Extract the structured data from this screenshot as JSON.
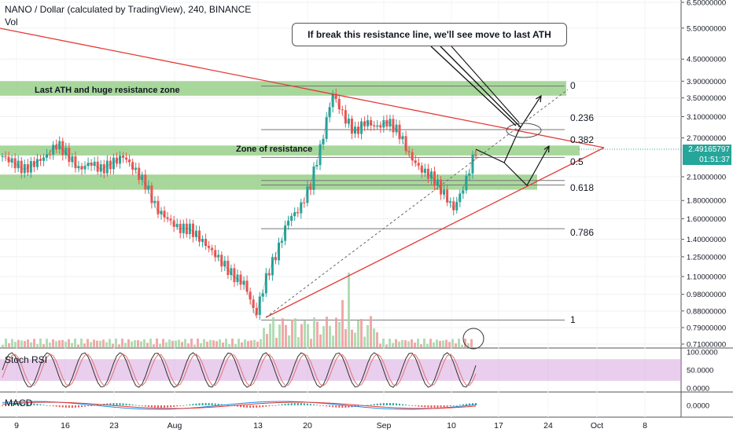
{
  "header": {
    "title": "NANO / Dollar (calculated by TradingView), 240, BINANCE",
    "volume_label": "Vol"
  },
  "annotations": {
    "callout": "If break this resistance line, we'll see move to last ATH",
    "ath_zone": "Last ATH and huge resistance zone",
    "resistance_zone": "Zone of resistance"
  },
  "fib_levels": [
    {
      "label": "0",
      "price": 3.78
    },
    {
      "label": "0.236",
      "price": 2.85
    },
    {
      "label": "0.382",
      "price": 2.38
    },
    {
      "label": "0.5",
      "price": 2.05
    },
    {
      "label": "0.618",
      "price": 1.99
    },
    {
      "label": "0.786",
      "price": 1.5
    },
    {
      "label": "1",
      "price": 0.83
    }
  ],
  "price_badges": {
    "last_price": "2.49165797",
    "countdown": "01:51:37"
  },
  "indicators": {
    "stoch_label": "Stoch RSI",
    "macd_label": "MACD",
    "stoch_ticks": [
      "100.0000",
      "50.0000",
      "0.0000"
    ],
    "macd_ticks": [
      "0.0000"
    ]
  },
  "colors": {
    "up": "#26a69a",
    "down": "#ef5350",
    "zone": "#8bc97a",
    "trendline": "#e53935",
    "stoch_band": "#ce93d8",
    "last_price_badge": "#26a69a"
  },
  "chart_data": {
    "type": "line",
    "series": [
      {
        "values": [
          2.4,
          2.3,
          2.2,
          2.3,
          2.4,
          2.6,
          2.4,
          2.2,
          2.3,
          2.2,
          2.3,
          2.4,
          2.2,
          2.0,
          1.7,
          1.6,
          1.5,
          1.5,
          1.4,
          1.3,
          1.2,
          1.1,
          1.05,
          0.85,
          1.1,
          1.3,
          1.6,
          1.7,
          2.0,
          2.6,
          3.6,
          3.1,
          2.8,
          3.0,
          2.9,
          3.0,
          2.8,
          2.4,
          2.2,
          2.1,
          1.9,
          1.7,
          2.0,
          2.49
        ]
      }
    ],
    "x_ticks": [
      "9",
      "16",
      "23",
      "Aug",
      "13",
      "20",
      "Sep",
      "10",
      "17",
      "24",
      "Oct",
      "8"
    ],
    "y_ticks": [
      6.5,
      5.5,
      4.5,
      3.9,
      3.5,
      3.1,
      2.7,
      2.1,
      1.8,
      1.6,
      1.4,
      1.25,
      1.1,
      0.98,
      0.88,
      0.79,
      0.71
    ],
    "y_scale": "log",
    "ylim": [
      0.69,
      6.6
    ],
    "resistance_zones": [
      [
        3.55,
        3.9
      ],
      [
        2.41,
        2.57
      ],
      [
        1.93,
        2.13
      ]
    ],
    "grid": true
  }
}
